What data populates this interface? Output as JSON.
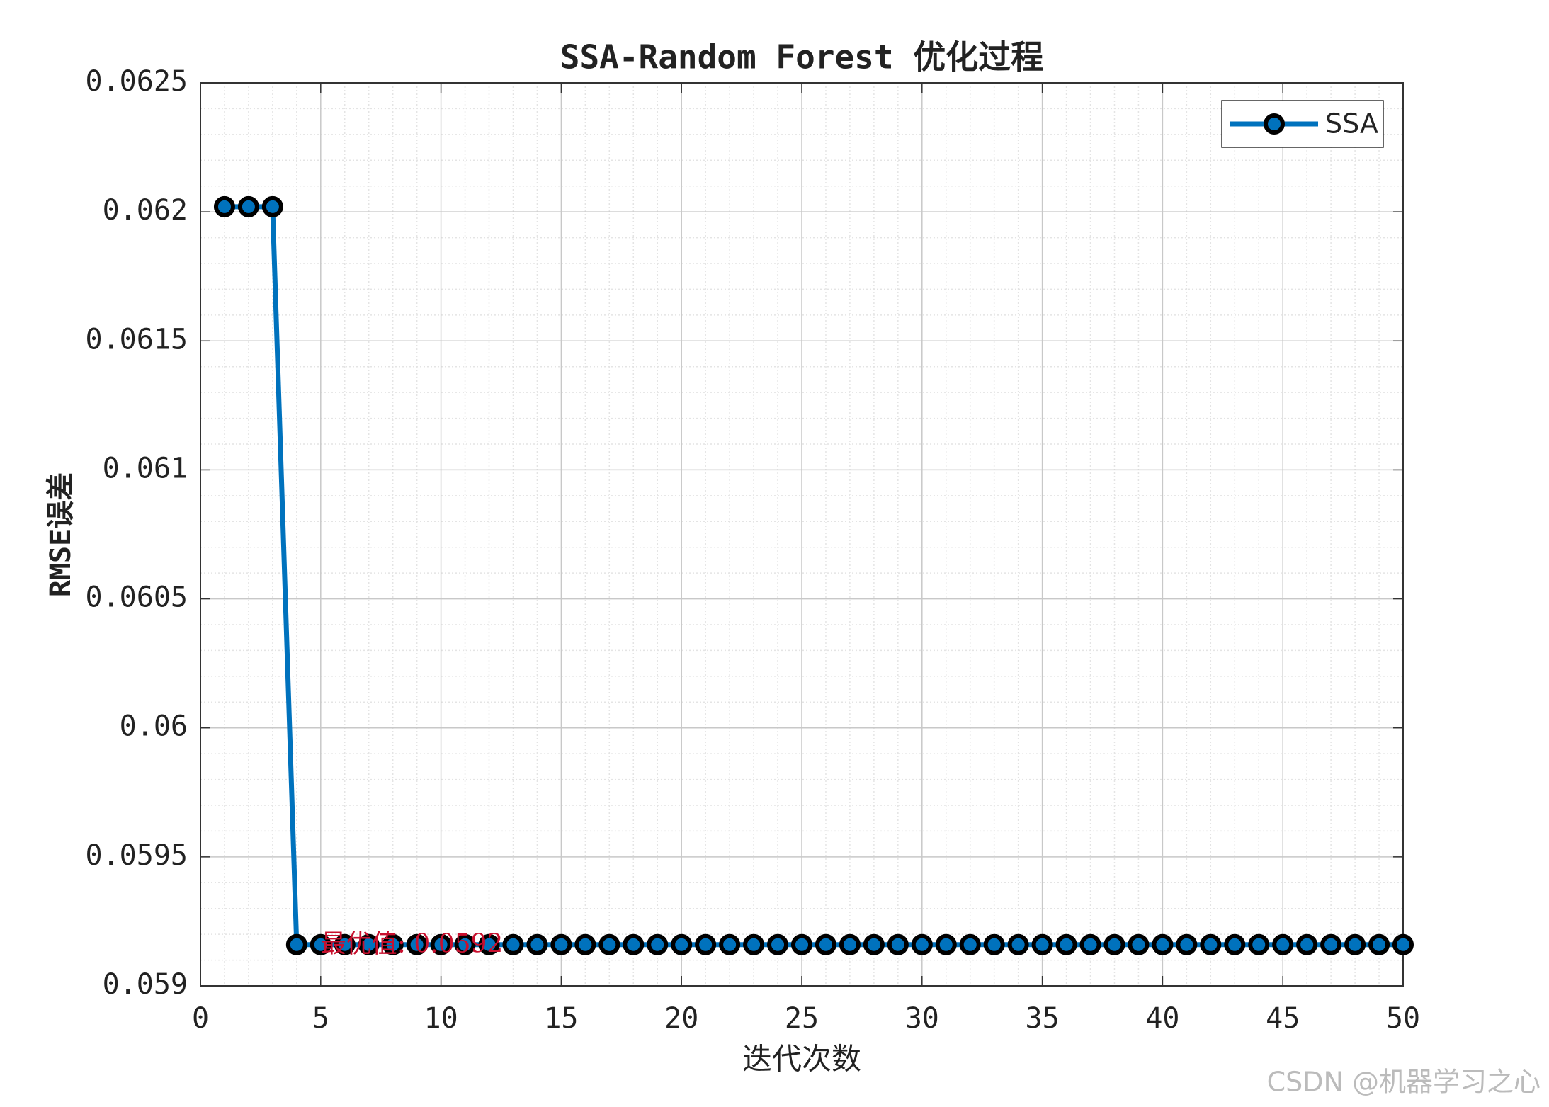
{
  "chart_data": {
    "type": "line",
    "title": "SSA-Random Forest 优化过程",
    "x_label": "迭代次数",
    "y_label": "RMSE误差",
    "x": [
      1,
      2,
      3,
      4,
      5,
      6,
      7,
      8,
      9,
      10,
      11,
      12,
      13,
      14,
      15,
      16,
      17,
      18,
      19,
      20,
      21,
      22,
      23,
      24,
      25,
      26,
      27,
      28,
      29,
      30,
      31,
      32,
      33,
      34,
      35,
      36,
      37,
      38,
      39,
      40,
      41,
      42,
      43,
      44,
      45,
      46,
      47,
      48,
      49,
      50
    ],
    "series": [
      {
        "name": "SSA",
        "color": "#0072bd",
        "marker_edge": "#000000",
        "values": [
          0.06202,
          0.06202,
          0.06202,
          0.05916,
          0.05916,
          0.05916,
          0.05916,
          0.05916,
          0.05916,
          0.05916,
          0.05916,
          0.05916,
          0.05916,
          0.05916,
          0.05916,
          0.05916,
          0.05916,
          0.05916,
          0.05916,
          0.05916,
          0.05916,
          0.05916,
          0.05916,
          0.05916,
          0.05916,
          0.05916,
          0.05916,
          0.05916,
          0.05916,
          0.05916,
          0.05916,
          0.05916,
          0.05916,
          0.05916,
          0.05916,
          0.05916,
          0.05916,
          0.05916,
          0.05916,
          0.05916,
          0.05916,
          0.05916,
          0.05916,
          0.05916,
          0.05916,
          0.05916,
          0.05916,
          0.05916,
          0.05916,
          0.05916
        ]
      }
    ],
    "annotation": "最优值: 0.0592",
    "annotation_color": "#c8102e",
    "xlim": [
      0,
      50
    ],
    "xticks": [
      0,
      5,
      10,
      15,
      20,
      25,
      30,
      35,
      40,
      45,
      50
    ],
    "ylim": [
      0.059,
      0.0625
    ],
    "yticks": [
      0.059,
      0.0595,
      0.06,
      0.0605,
      0.061,
      0.0615,
      0.062,
      0.0625
    ],
    "grid": true,
    "minor_grid": true,
    "legend": "northeast"
  },
  "watermark": "CSDN @机器学习之心"
}
